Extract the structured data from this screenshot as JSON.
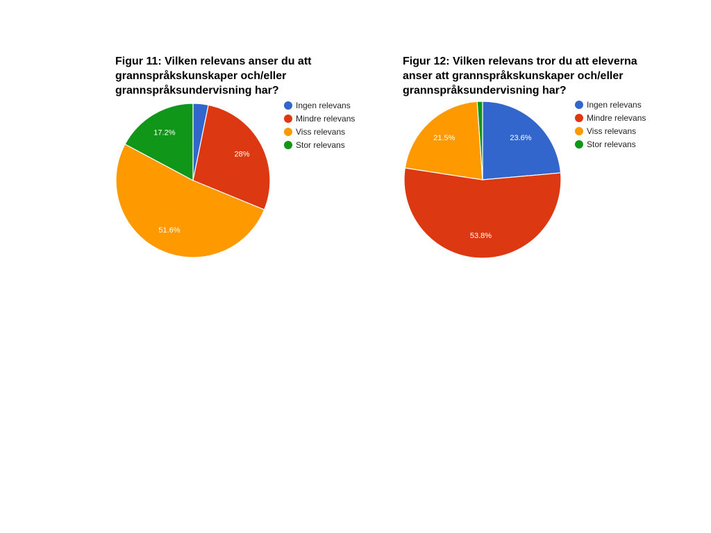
{
  "chart_data": [
    {
      "type": "pie",
      "title": "Figur 11: Vilken relevans anser du att\ngrannspråkskunskaper och/eller\ngrannspråksundervisning har?",
      "legend_position": "right",
      "categories": [
        "Ingen relevans",
        "Mindre relevans",
        "Viss relevans",
        "Stor relevans"
      ],
      "values": [
        3.2,
        28,
        51.6,
        17.2
      ],
      "labels": [
        "",
        "28%",
        "51.6%",
        "17.2%"
      ],
      "colors": [
        "#3366cc",
        "#dc3912",
        "#ff9900",
        "#109618"
      ]
    },
    {
      "type": "pie",
      "title": "Figur 12: Vilken relevans tror du att eleverna\nanser att grannspråkskunskaper och/eller\ngrannspråksundervisning har?",
      "legend_position": "right",
      "categories": [
        "Ingen relevans",
        "Mindre relevans",
        "Viss relevans",
        "Stor relevans"
      ],
      "values": [
        23.6,
        53.8,
        21.5,
        1.1
      ],
      "labels": [
        "23.6%",
        "53.8%",
        "21.5%",
        ""
      ],
      "colors": [
        "#3366cc",
        "#dc3912",
        "#ff9900",
        "#109618"
      ]
    }
  ]
}
